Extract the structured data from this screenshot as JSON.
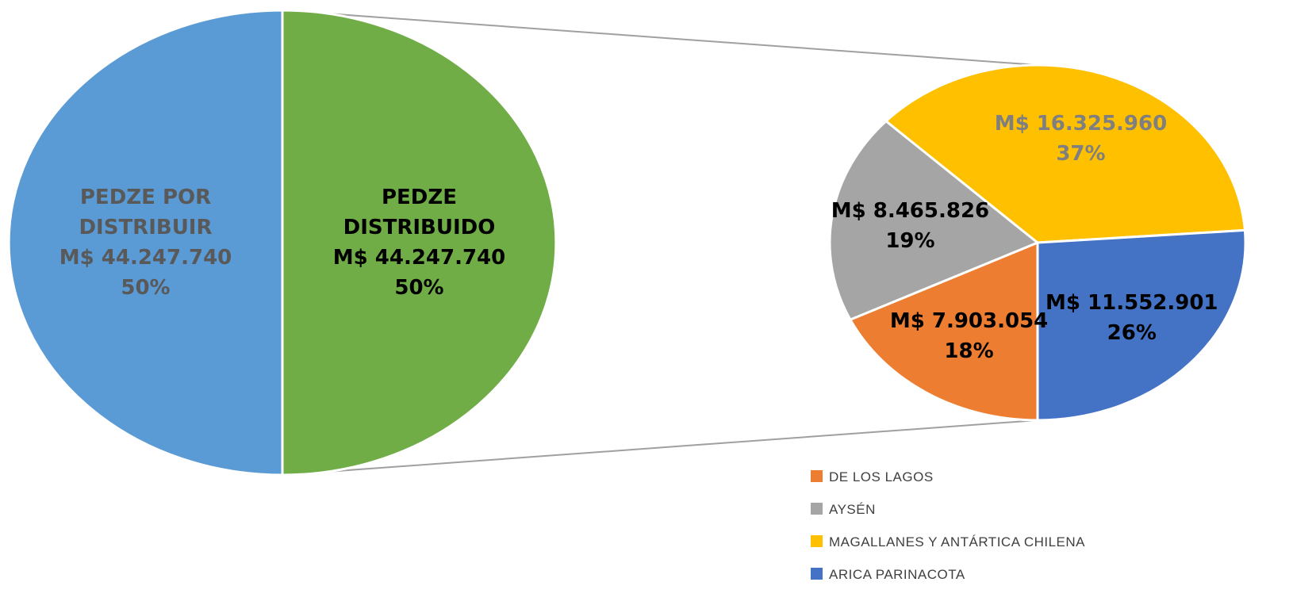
{
  "chart_data": [
    {
      "type": "pie",
      "categories": [
        "PEDZE POR DISTRIBUIR",
        "PEDZE DISTRIBUIDO"
      ],
      "values": [
        44247740,
        44247740
      ],
      "value_labels": [
        "M$ 44.247.740",
        "M$ 44.247.740"
      ],
      "percents": [
        50,
        50
      ],
      "percent_labels": [
        "50%",
        "50%"
      ],
      "colors": [
        "#5b9bd5",
        "#70ad47"
      ],
      "label_colors": [
        "#595959",
        "#000000"
      ]
    },
    {
      "type": "pie",
      "categories": [
        "DE LOS LAGOS",
        "AYSÉN",
        "MAGALLANES Y ANTÁRTICA CHILENA",
        "ARICA PARINACOTA"
      ],
      "values": [
        7903054,
        8465826,
        16325960,
        11552901
      ],
      "value_labels": [
        "M$ 7.903.054",
        "M$ 8.465.826",
        "M$ 16.325.960",
        "M$ 11.552.901"
      ],
      "percents": [
        18,
        19,
        37,
        26
      ],
      "percent_labels": [
        "18%",
        "19%",
        "37%",
        "26%"
      ],
      "colors": [
        "#ed7d31",
        "#a5a5a5",
        "#ffc000",
        "#4472c4"
      ],
      "label_colors": [
        "#000000",
        "#000000",
        "#7f7f7f",
        "#000000"
      ],
      "legend": "bottom-right"
    }
  ]
}
